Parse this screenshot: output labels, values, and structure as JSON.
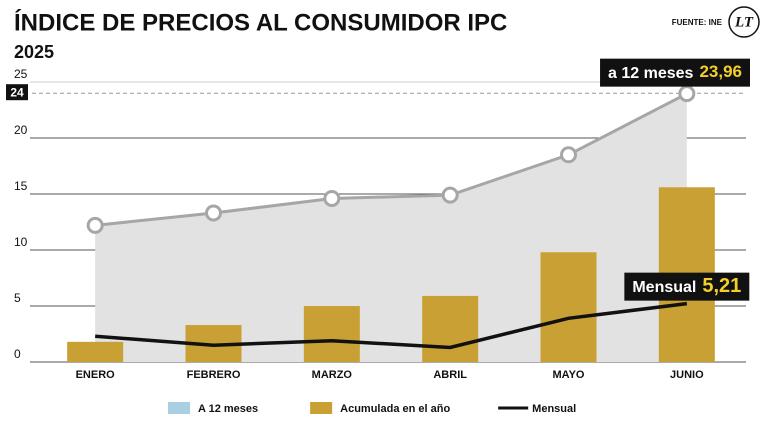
{
  "chart_data": {
    "type": "combo",
    "title": "ÍNDICE DE PRECIOS AL CONSUMIDOR IPC",
    "subtitle": "2025",
    "source": "FUENTE: INE",
    "logo": "LT",
    "categories": [
      "ENERO",
      "FEBRERO",
      "MARZO",
      "ABRIL",
      "MAYO",
      "JUNIO"
    ],
    "series": [
      {
        "name": "A 12 meses",
        "type": "area",
        "color": "#a8d0e2",
        "line_color": "#a6a6a6",
        "fill_color": "#e2e2e2",
        "values": [
          12.2,
          13.3,
          14.6,
          14.9,
          18.5,
          23.96
        ],
        "value_labels": [
          null,
          null,
          null,
          null,
          null,
          "23,96"
        ],
        "callout": "a 12 meses"
      },
      {
        "name": "Acumulada en el año",
        "type": "bar",
        "color": "#c9a033",
        "values": [
          1.8,
          3.3,
          5.0,
          5.9,
          9.8,
          15.6
        ]
      },
      {
        "name": "Mensual",
        "type": "line",
        "color": "#111111",
        "values": [
          2.3,
          1.5,
          1.9,
          1.3,
          3.9,
          5.21
        ],
        "value_labels": [
          null,
          null,
          null,
          null,
          null,
          "5,21"
        ],
        "callout": "Mensual"
      }
    ],
    "ylim": [
      0,
      25
    ],
    "yticks": [
      0,
      5,
      10,
      15,
      20,
      25
    ],
    "reference_line": 24,
    "grid": true
  }
}
